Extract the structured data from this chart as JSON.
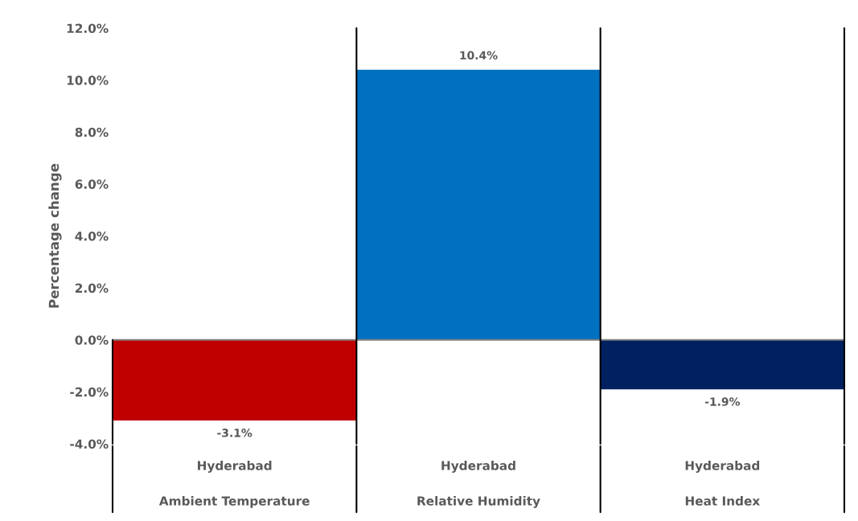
{
  "chart_data": {
    "type": "bar",
    "ylabel": "Percentage change",
    "categories": [
      "Hyderabad\nAmbient Temperature",
      "Hyderabad\nRelative Humidity",
      "Hyderabad\nHeat Index"
    ],
    "values": [
      -3.1,
      10.4,
      -1.9
    ],
    "colors": [
      "#c00000",
      "#0070c0",
      "#002060"
    ],
    "value_labels": [
      "-3.1%",
      "10.4%",
      "-1.9%"
    ],
    "ylim": [
      -4,
      12
    ],
    "yticks": [
      {
        "value": -4,
        "label": "-4.0%"
      },
      {
        "value": -2,
        "label": "-2.0%"
      },
      {
        "value": 0,
        "label": "0.0%"
      },
      {
        "value": 2,
        "label": "2.0%"
      },
      {
        "value": 4,
        "label": "4.0%"
      },
      {
        "value": 6,
        "label": "6.0%"
      },
      {
        "value": 8,
        "label": "8.0%"
      },
      {
        "value": 10,
        "label": "10.0%"
      },
      {
        "value": 12,
        "label": "12.0%"
      }
    ],
    "grid": false,
    "legend": false
  }
}
